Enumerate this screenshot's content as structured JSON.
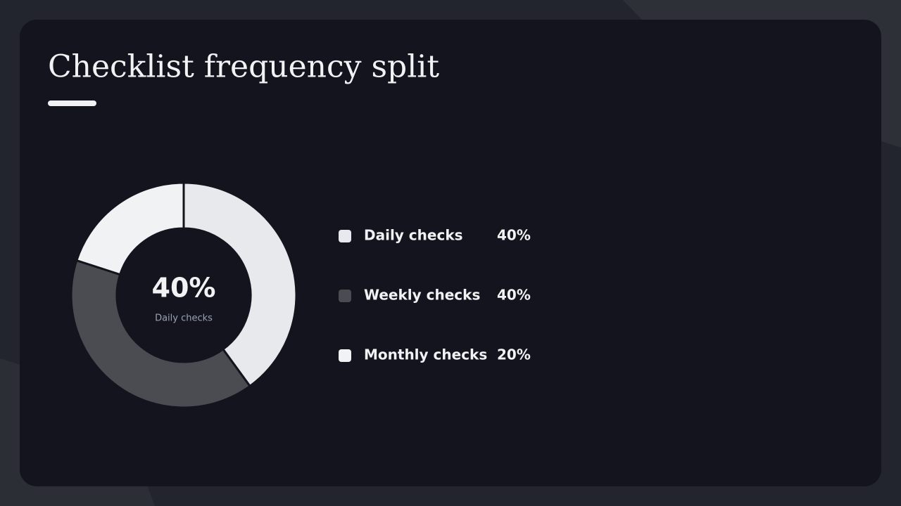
{
  "chart_data": {
    "type": "donut",
    "title": "Checklist frequency split",
    "categories": [
      "Daily checks",
      "Weekly checks",
      "Monthly checks"
    ],
    "values": [
      40,
      40,
      20
    ],
    "value_labels": [
      "40%",
      "40%",
      "20%"
    ],
    "colors": [
      "#e8e9ed",
      "#4a4c51",
      "#f1f2f4"
    ]
  }
}
